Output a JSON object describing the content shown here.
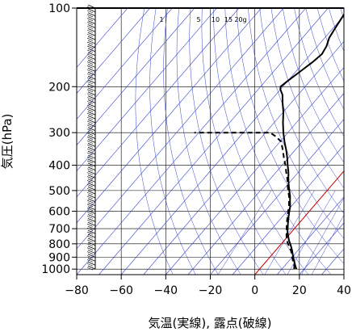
{
  "chart_data": {
    "type": "line",
    "title": "",
    "xlabel": "気温(実線), 露点(破線)",
    "ylabel": "気圧(hPa)",
    "x_axis": {
      "ticks": [
        -80,
        -60,
        -40,
        -20,
        0,
        20,
        40
      ],
      "range": [
        -80,
        40
      ]
    },
    "y_axis": {
      "scale": "log",
      "ticks": [
        100,
        200,
        300,
        400,
        500,
        600,
        700,
        800,
        900,
        1000
      ],
      "range": [
        100,
        1050
      ]
    },
    "isotherms_step": 10,
    "mixing_ratio_labels": [
      "1",
      "5",
      "10",
      "15",
      "20g"
    ],
    "freezing_line": {
      "label": "0°C",
      "color": "#cc0000"
    },
    "series": [
      {
        "style": "solid",
        "points": [
          [
            16.5,
            1000
          ],
          [
            15,
            975
          ],
          [
            13.5,
            950
          ],
          [
            12,
            925
          ],
          [
            10.5,
            900
          ],
          [
            9,
            875
          ],
          [
            7.5,
            850
          ],
          [
            5.8,
            825
          ],
          [
            4,
            800
          ],
          [
            2,
            775
          ],
          [
            0.3,
            750
          ],
          [
            -1.5,
            725
          ],
          [
            -3,
            700
          ],
          [
            -4.5,
            675
          ],
          [
            -6,
            650
          ],
          [
            -7.5,
            625
          ],
          [
            -9,
            600
          ],
          [
            -10.5,
            575
          ],
          [
            -12.5,
            550
          ],
          [
            -14.5,
            525
          ],
          [
            -17,
            500
          ],
          [
            -19.5,
            475
          ],
          [
            -22,
            450
          ],
          [
            -24.5,
            425
          ],
          [
            -27.5,
            400
          ],
          [
            -30.5,
            375
          ],
          [
            -34,
            350
          ],
          [
            -38,
            325
          ],
          [
            -42,
            300
          ],
          [
            -46,
            275
          ],
          [
            -50,
            250
          ],
          [
            -54,
            230
          ],
          [
            -57,
            215
          ],
          [
            -60,
            205
          ],
          [
            -61,
            200
          ],
          [
            -60,
            190
          ],
          [
            -58,
            175
          ],
          [
            -56,
            160
          ],
          [
            -55,
            150
          ],
          [
            -56,
            140
          ],
          [
            -58,
            130
          ],
          [
            -59,
            120
          ],
          [
            -60,
            110
          ],
          [
            -61,
            100
          ]
        ]
      },
      {
        "style": "dashed",
        "points": [
          [
            15.5,
            1000
          ],
          [
            14.5,
            975
          ],
          [
            13,
            950
          ],
          [
            11.5,
            925
          ],
          [
            10,
            900
          ],
          [
            8.5,
            875
          ],
          [
            7,
            850
          ],
          [
            5,
            825
          ],
          [
            3,
            800
          ],
          [
            1,
            775
          ],
          [
            -0.5,
            750
          ],
          [
            -2,
            725
          ],
          [
            -3.5,
            700
          ],
          [
            -5,
            675
          ],
          [
            -6.5,
            650
          ],
          [
            -8,
            625
          ],
          [
            -9.5,
            600
          ],
          [
            -11,
            575
          ],
          [
            -13,
            550
          ],
          [
            -15,
            525
          ],
          [
            -17.5,
            500
          ],
          [
            -20,
            475
          ],
          [
            -22.5,
            450
          ],
          [
            -25.5,
            425
          ],
          [
            -28.5,
            400
          ],
          [
            -32,
            375
          ],
          [
            -35.5,
            350
          ],
          [
            -39.5,
            325
          ],
          [
            -44,
            310
          ],
          [
            -48,
            300
          ],
          [
            -52,
            300
          ],
          [
            -62,
            300
          ],
          [
            -82,
            300
          ]
        ]
      }
    ],
    "wind_barbs": "vertical column of wind barbs along left side, levels 1000 to 100 hPa"
  }
}
